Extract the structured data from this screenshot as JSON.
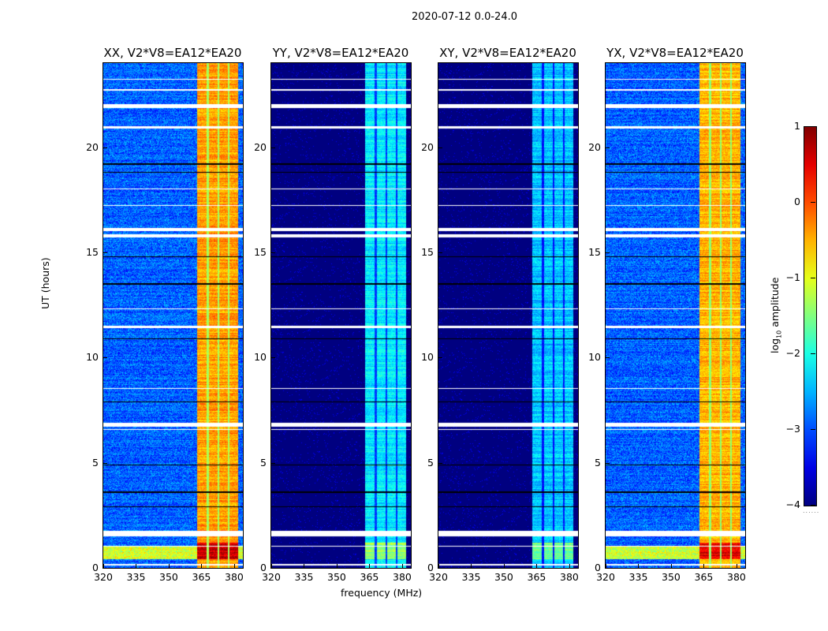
{
  "title": "2020-07-12 0.0-24.0",
  "chart_data": {
    "type": "heatmap",
    "title": "2020-07-12 0.0-24.0",
    "xlabel": "frequency (MHz)",
    "ylabel": "UT (hours)",
    "xlim": [
      320,
      384
    ],
    "ylim": [
      0,
      24
    ],
    "xticks": [
      "320",
      "335",
      "350",
      "365",
      "380"
    ],
    "xtick_values": [
      320,
      335,
      350,
      365,
      380
    ],
    "yticks": [
      "0",
      "5",
      "10",
      "15",
      "20"
    ],
    "ytick_values": [
      0,
      5,
      10,
      15,
      20
    ],
    "colormap": "jet",
    "panels": [
      {
        "title": "XX, V2*V8=EA12*EA20",
        "background_log10": -2.9,
        "band_log10": -0.4,
        "band_mhz": [
          363,
          382
        ]
      },
      {
        "title": "YY, V2*V8=EA12*EA20",
        "background_log10": -4.0,
        "band_log10": -2.2,
        "band_mhz": [
          363,
          382
        ]
      },
      {
        "title": "XY, V2*V8=EA12*EA20",
        "background_log10": -4.0,
        "band_log10": -2.4,
        "band_mhz": [
          363,
          382
        ]
      },
      {
        "title": "YX, V2*V8=EA12*EA20",
        "background_log10": -2.9,
        "band_log10": -0.5,
        "band_mhz": [
          363,
          382
        ]
      }
    ],
    "flagged_ut_ranges": [
      [
        0.1,
        0.2
      ],
      [
        1.0,
        1.05
      ],
      [
        1.5,
        1.75
      ],
      [
        6.55,
        6.6
      ],
      [
        6.7,
        6.9
      ],
      [
        8.5,
        8.55
      ],
      [
        11.4,
        11.5
      ],
      [
        12.3,
        12.35
      ],
      [
        15.7,
        15.85
      ],
      [
        16.0,
        16.15
      ],
      [
        17.2,
        17.25
      ],
      [
        18.0,
        18.05
      ],
      [
        20.9,
        21.0
      ],
      [
        21.85,
        22.05
      ],
      [
        22.7,
        22.75
      ],
      [
        23.2,
        23.25
      ]
    ],
    "dark_ut_lines": [
      2.9,
      3.6,
      4.9,
      7.9,
      10.9,
      13.5,
      14.8,
      18.8,
      19.2
    ],
    "colorbar": {
      "label": "log10 amplitude",
      "label_main": "log",
      "label_sub": "10",
      "label_rest": " amplitude",
      "range": [
        -4,
        1
      ],
      "ticks": [
        "1",
        "0",
        "−1",
        "−2",
        "−3",
        "−4"
      ],
      "tick_values": [
        1,
        0,
        -1,
        -2,
        -3,
        -4
      ]
    }
  }
}
